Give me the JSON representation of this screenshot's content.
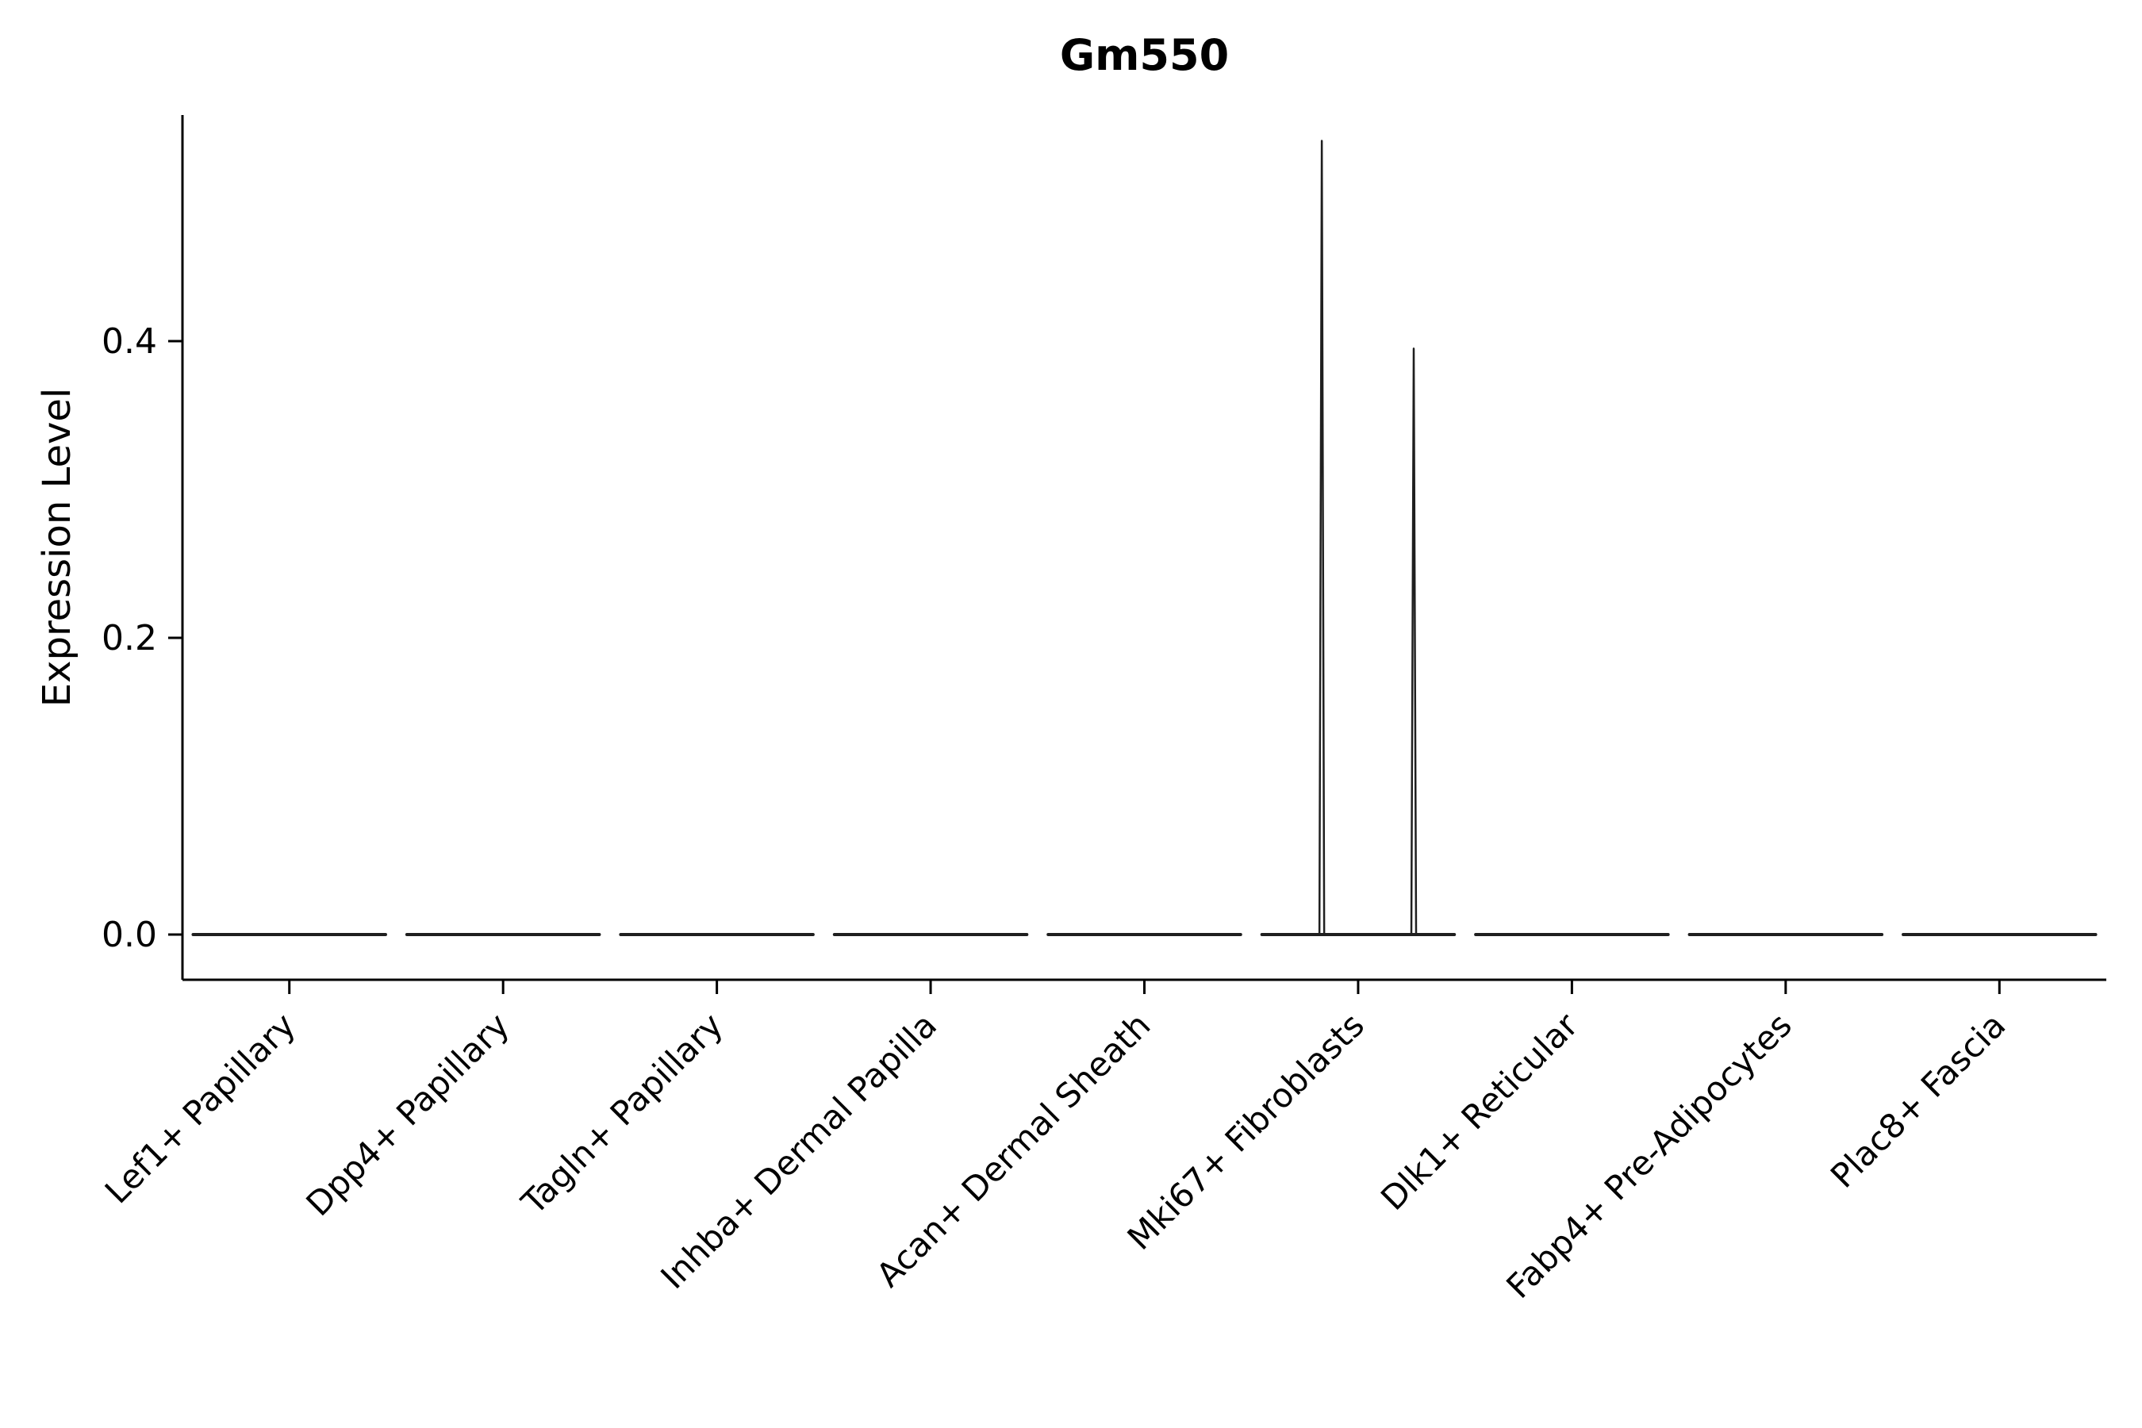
{
  "chart_data": {
    "type": "violin",
    "title": "Gm550",
    "xlabel": "",
    "ylabel": "Expression Level",
    "categories": [
      "Lef1+ Papillary",
      "Dpp4+ Papillary",
      "Tagln+ Papillary",
      "Inhba+ Dermal Papilla",
      "Acan+ Dermal Sheath",
      "Mki67+ Fibroblasts",
      "Dlk1+ Reticular",
      "Fabp4+ Pre-Adipocytes",
      "Plac8+ Fascia"
    ],
    "yticks": [
      0.0,
      0.2,
      0.4
    ],
    "ylim": [
      -0.02,
      0.57
    ],
    "grid": false,
    "legend": "none",
    "violins": [
      {
        "category": "Lef1+ Papillary",
        "max": 0.0,
        "spikes": []
      },
      {
        "category": "Dpp4+ Papillary",
        "max": 0.0,
        "spikes": []
      },
      {
        "category": "Tagln+ Papillary",
        "max": 0.0,
        "spikes": []
      },
      {
        "category": "Inhba+ Dermal Papilla",
        "max": 0.0,
        "spikes": []
      },
      {
        "category": "Acan+ Dermal Sheath",
        "max": 0.0,
        "spikes": []
      },
      {
        "category": "Mki67+ Fibroblasts",
        "max": 0.535,
        "spikes": [
          {
            "offset": -0.17,
            "height": 0.535
          },
          {
            "offset": 0.26,
            "height": 0.395
          }
        ]
      },
      {
        "category": "Dlk1+ Reticular",
        "max": 0.0,
        "spikes": []
      },
      {
        "category": "Fabp4+ Pre-Adipocytes",
        "max": 0.0,
        "spikes": []
      },
      {
        "category": "Plac8+ Fascia",
        "max": 0.0,
        "spikes": []
      }
    ],
    "colors": {
      "line": "#1f1f1f",
      "axis": "#000000",
      "background": "#ffffff"
    }
  }
}
